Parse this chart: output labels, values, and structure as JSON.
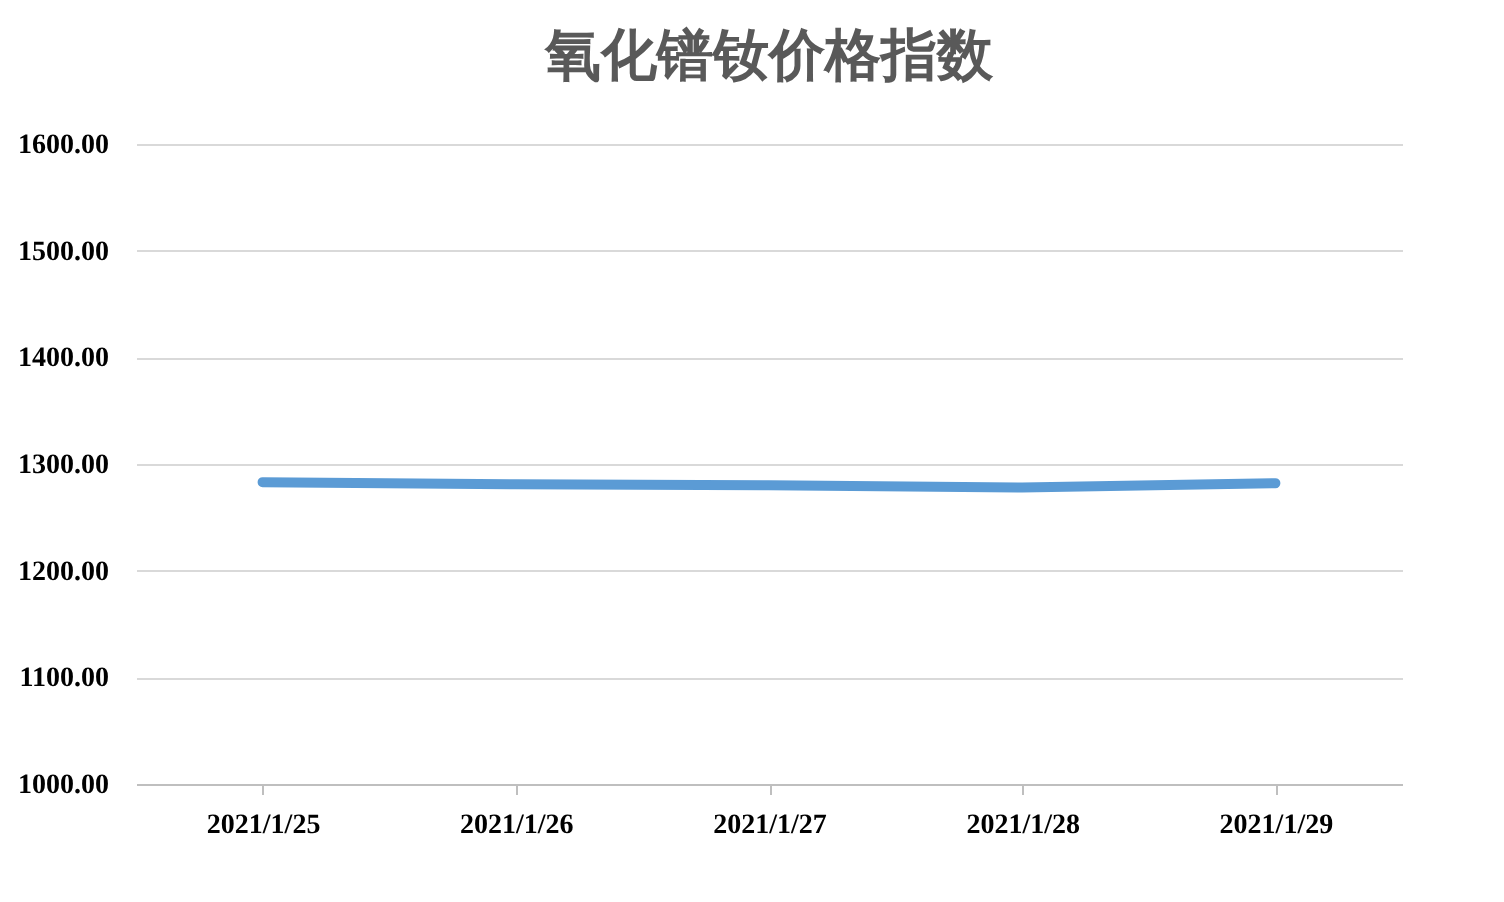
{
  "chart_data": {
    "type": "line",
    "title": "氧化镨钕价格指数",
    "categories": [
      "2021/1/25",
      "2021/1/26",
      "2021/1/27",
      "2021/1/28",
      "2021/1/29"
    ],
    "series": [
      {
        "color": "#5b9bd5",
        "values": [
          1283,
          1281,
          1280,
          1278,
          1282
        ]
      }
    ],
    "ylim": [
      1000,
      1600
    ],
    "yticks": [
      {
        "value": 1000,
        "label": "1000.00"
      },
      {
        "value": 1100,
        "label": "1100.00"
      },
      {
        "value": 1200,
        "label": "1200.00"
      },
      {
        "value": 1300,
        "label": "1300.00"
      },
      {
        "value": 1400,
        "label": "1400.00"
      },
      {
        "value": 1500,
        "label": "1500.00"
      },
      {
        "value": 1600,
        "label": "1600.00"
      }
    ],
    "grid": "y",
    "legend": false,
    "marker": "none",
    "line_style": "solid"
  }
}
